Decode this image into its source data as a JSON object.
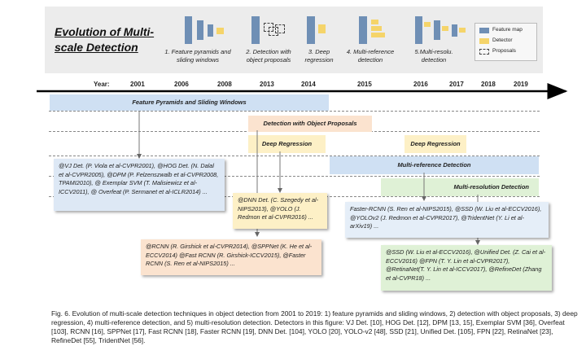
{
  "title": "Evolution of Multi-scale Detection",
  "stages": [
    "1. Feature pyramids and sliding windows",
    "2. Detection with object proposals",
    "3. Deep regression",
    "4. Multi-reference detection",
    "5.Multi-resolu. detection"
  ],
  "legend": {
    "feature_map": "Feature map",
    "detector": "Detector",
    "proposals": "Proposals"
  },
  "colors": {
    "feature_map": "#6f8fb5",
    "detector": "#f5d46a",
    "blue_band": "#cfe0f3",
    "orange_band": "#fbe3cf",
    "yellow_band": "#fdf0c6",
    "green_band": "#dff1d6"
  },
  "timeline": {
    "label": "Year:",
    "years": [
      "2001",
      "2006",
      "2008",
      "2013",
      "2014",
      "2015",
      "2016",
      "2017",
      "2018",
      "2019"
    ]
  },
  "bands": {
    "feature_pyramids": "Feature Pyramids and Sliding Windows",
    "object_proposals": "Detection with Object Proposals",
    "deep_regression_1": "Deep Regression",
    "deep_regression_2": "Deep Regression",
    "multi_reference": "Multi-reference Detection",
    "multi_resolution": "Multi-resolution Detection"
  },
  "references": {
    "sliding_windows": "@VJ Det. (P. Viola et al-CVPR2001), @HOG Det. (N. Dalal et al-CVPR2005), @DPM (P. Felzenszwalb et al-CVPR2008, TPAMI2010), @ Exemplar SVM (T. Malisiewicz et al-ICCV2011), @ Overfeat (P. Sermanet et al-ICLR2014) ...",
    "deep_regression": "@DNN Det. (C. Szegedy et al-NIPS2013), @YOLO (J. Redmon et al-CVPR2016) ...",
    "proposals": "@RCNN (R. Girshick et al-CVPR2014), @SPPNet (K. He et al-ECCV2014) @Fast RCNN (R. Girshick-ICCV2015), @Faster RCNN (S. Ren et al-NIPS2015) ...",
    "multi_reference": "Faster-RCNN (S. Ren et al-NIPS2015), @SSD (W. Liu et al-ECCV2016), @YOLOv2 (J. Redmon et al-CVPR2017), @TridentNet (Y. Li et al-arXiv19) ...",
    "multi_resolution": "@SSD (W. Liu et al-ECCV2016), @Unified Det. (Z. Cai et al-ECCV2016) @FPN (T. Y. Lin et al-CVPR2017), @RetinaNet(T. Y. Lin et al-ICCV2017), @RefineDet (Zhang et al-CVPR18) ..."
  },
  "caption": "Fig. 6.  Evolution of multi-scale detection techniques in object detection from 2001 to 2019: 1) feature pyramids and sliding windows, 2) detection with object proposals, 3) deep regression, 4) multi-reference detection, and 5) multi-resolution detection. Detectors in this figure: VJ Det. [10], HOG Det. [12], DPM [13, 15], Exemplar SVM [36], Overfeat [103], RCNN [16], SPPNet [17], Fast RCNN [18], Faster RCNN [19], DNN Det. [104], YOLO [20], YOLO-v2 [48], SSD [21], Unified Det. [105], FPN [22], RetinaNet [23], RefineDet [55], TridentNet [56]."
}
